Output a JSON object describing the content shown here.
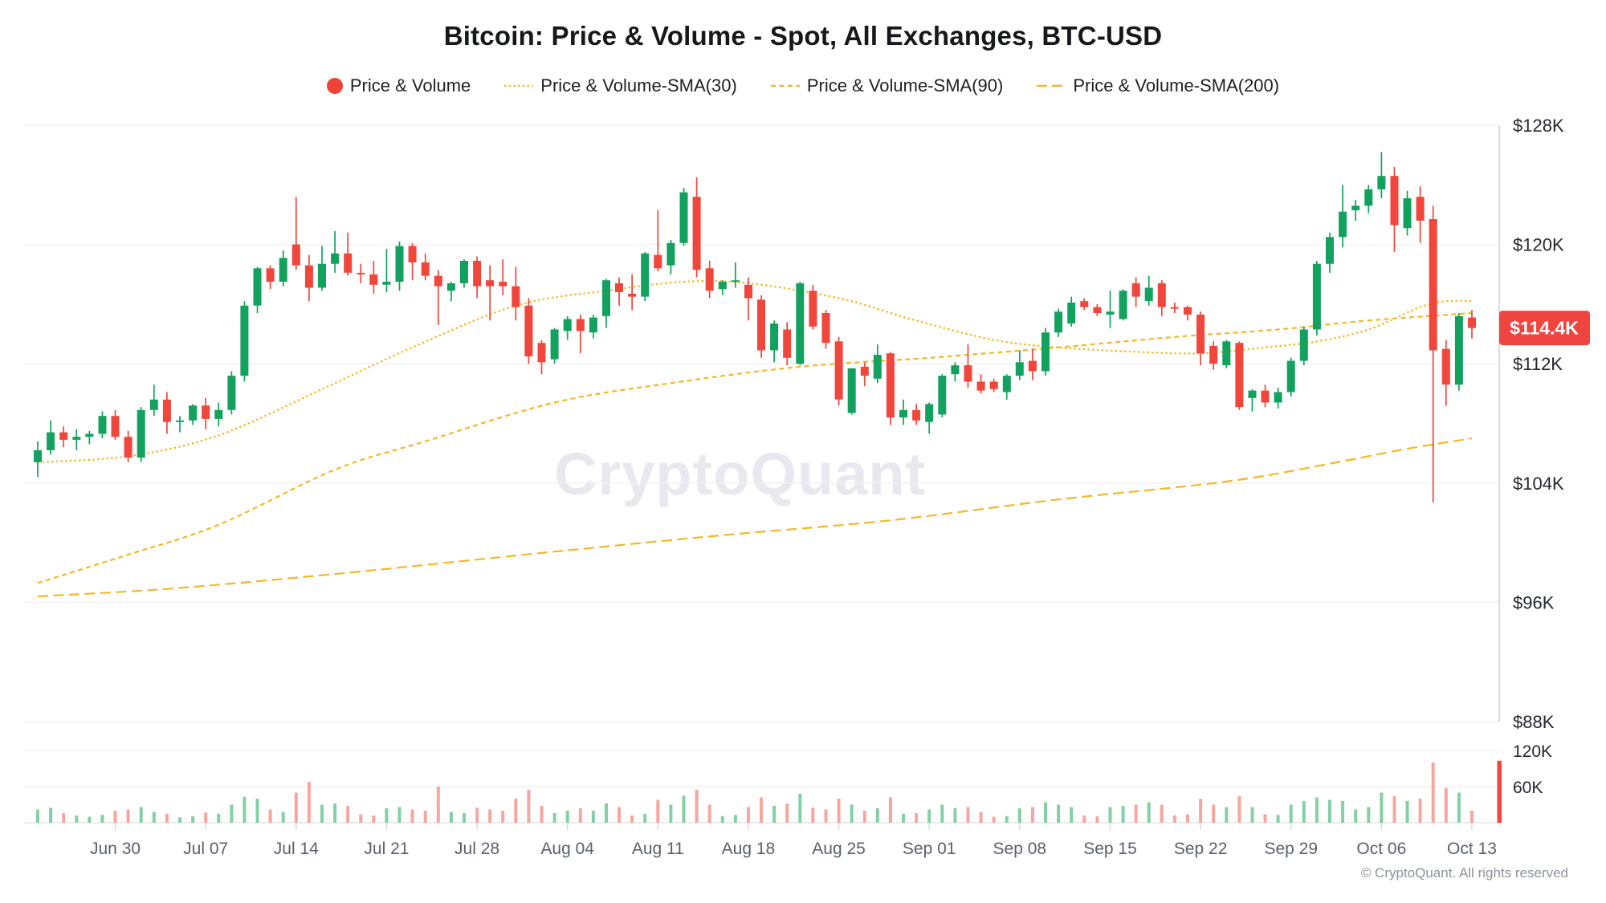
{
  "header": {
    "title": "Bitcoin: Price & Volume - Spot, All Exchanges, BTC-USD",
    "legend": {
      "items": [
        {
          "label": "Price & Volume",
          "marker": "dot",
          "color": "#ee4338"
        },
        {
          "label": "Price & Volume-SMA(30)",
          "marker": "dash-fine",
          "color": "#f4b824"
        },
        {
          "label": "Price & Volume-SMA(90)",
          "marker": "dash-medium",
          "color": "#f4b824"
        },
        {
          "label": "Price & Volume-SMA(200)",
          "marker": "dash-long",
          "color": "#f4b824"
        }
      ]
    }
  },
  "watermark": "CryptoQuant",
  "footer": {
    "copyright": "© CryptoQuant. All rights reserved"
  },
  "chart_data": {
    "type": "candlestick",
    "title": "Bitcoin: Price & Volume - Spot, All Exchanges, BTC-USD",
    "start_date": "Jun 24",
    "end_date": "Oct 13",
    "grid": true,
    "legend_position": "top-center",
    "price_axis": {
      "unit": "$K",
      "range": [
        88,
        128
      ],
      "ticks": [
        {
          "label": "$128K",
          "value": 128
        },
        {
          "label": "$120K",
          "value": 120
        },
        {
          "label": "$112K",
          "value": 112
        },
        {
          "label": "$104K",
          "value": 104
        },
        {
          "label": "$96K",
          "value": 96
        },
        {
          "label": "$88K",
          "value": 88
        }
      ]
    },
    "volume_axis": {
      "unit": "K",
      "ticks": [
        {
          "label": "120K",
          "value": 120
        },
        {
          "label": "60K",
          "value": 60
        }
      ],
      "axis_marker_value": 103
    },
    "x_axis": {
      "ticks": [
        {
          "label": "Jun 30",
          "day": 6
        },
        {
          "label": "Jul 07",
          "day": 13
        },
        {
          "label": "Jul 14",
          "day": 20
        },
        {
          "label": "Jul 21",
          "day": 27
        },
        {
          "label": "Jul 28",
          "day": 34
        },
        {
          "label": "Aug 04",
          "day": 41
        },
        {
          "label": "Aug 11",
          "day": 48
        },
        {
          "label": "Aug 18",
          "day": 55
        },
        {
          "label": "Aug 25",
          "day": 62
        },
        {
          "label": "Sep 01",
          "day": 69
        },
        {
          "label": "Sep 08",
          "day": 76
        },
        {
          "label": "Sep 15",
          "day": 83
        },
        {
          "label": "Sep 22",
          "day": 90
        },
        {
          "label": "Sep 29",
          "day": 97
        },
        {
          "label": "Oct 06",
          "day": 104
        },
        {
          "label": "Oct 13",
          "day": 111
        }
      ]
    },
    "last_price": {
      "label": "$114.4K",
      "value": 114.4
    },
    "colors": {
      "up": "#13a15f",
      "down": "#f0463c",
      "volume_up": "#84cfa6",
      "volume_down": "#f5a79f",
      "sma": "#f4b824",
      "badge": "#ef4540",
      "grid": "#f2f2f4",
      "axis_line": "#d9dbdf"
    },
    "ohlc": [
      [
        105.4,
        106.8,
        104.4,
        106.2
      ],
      [
        106.2,
        108.2,
        105.9,
        107.4
      ],
      [
        107.4,
        107.8,
        106.4,
        106.9
      ],
      [
        106.9,
        107.6,
        106.2,
        107.1
      ],
      [
        107.1,
        107.5,
        106.6,
        107.3
      ],
      [
        107.3,
        108.8,
        107.0,
        108.5
      ],
      [
        108.5,
        108.9,
        106.9,
        107.1
      ],
      [
        107.1,
        107.5,
        105.4,
        105.7
      ],
      [
        105.7,
        109.1,
        105.4,
        108.9
      ],
      [
        108.9,
        110.6,
        108.5,
        109.6
      ],
      [
        109.6,
        110.1,
        107.3,
        108.1
      ],
      [
        108.1,
        108.5,
        107.4,
        108.2
      ],
      [
        108.2,
        109.3,
        107.9,
        109.2
      ],
      [
        109.2,
        109.7,
        107.6,
        108.3
      ],
      [
        108.3,
        109.4,
        107.8,
        108.9
      ],
      [
        108.9,
        111.5,
        108.6,
        111.2
      ],
      [
        111.2,
        116.2,
        110.8,
        115.9
      ],
      [
        115.9,
        118.5,
        115.4,
        118.4
      ],
      [
        118.4,
        118.6,
        117.0,
        117.5
      ],
      [
        117.5,
        119.6,
        117.2,
        119.1
      ],
      [
        120.0,
        123.2,
        118.3,
        118.6
      ],
      [
        118.6,
        119.3,
        116.2,
        117.1
      ],
      [
        117.1,
        119.9,
        116.9,
        118.7
      ],
      [
        118.7,
        120.9,
        118.1,
        119.4
      ],
      [
        119.4,
        120.8,
        117.9,
        118.1
      ],
      [
        118.1,
        118.7,
        117.4,
        118.0
      ],
      [
        118.0,
        118.9,
        116.7,
        117.3
      ],
      [
        117.3,
        119.7,
        116.8,
        117.5
      ],
      [
        117.5,
        120.2,
        116.9,
        119.9
      ],
      [
        119.9,
        120.1,
        117.6,
        118.8
      ],
      [
        118.8,
        119.4,
        117.6,
        117.9
      ],
      [
        117.9,
        118.3,
        114.6,
        117.2
      ],
      [
        116.9,
        117.5,
        116.2,
        117.4
      ],
      [
        117.4,
        119.0,
        117.1,
        118.9
      ],
      [
        118.9,
        119.2,
        116.4,
        117.2
      ],
      [
        117.6,
        118.6,
        114.9,
        117.2
      ],
      [
        117.5,
        119.0,
        116.6,
        117.2
      ],
      [
        117.2,
        118.5,
        114.9,
        115.8
      ],
      [
        115.9,
        116.4,
        112.0,
        112.5
      ],
      [
        113.4,
        113.6,
        111.3,
        112.1
      ],
      [
        112.3,
        114.4,
        112.0,
        114.3
      ],
      [
        114.2,
        115.2,
        113.6,
        115.0
      ],
      [
        115.0,
        115.3,
        112.7,
        114.2
      ],
      [
        114.1,
        115.3,
        113.7,
        115.1
      ],
      [
        115.2,
        117.7,
        114.4,
        117.6
      ],
      [
        117.4,
        117.8,
        115.9,
        116.8
      ],
      [
        116.7,
        118.0,
        115.6,
        116.5
      ],
      [
        116.5,
        119.5,
        116.2,
        119.4
      ],
      [
        119.3,
        122.3,
        118.2,
        118.4
      ],
      [
        118.6,
        120.3,
        118.0,
        120.1
      ],
      [
        120.1,
        123.8,
        119.9,
        123.5
      ],
      [
        123.2,
        124.5,
        117.8,
        118.3
      ],
      [
        118.4,
        118.9,
        116.4,
        116.9
      ],
      [
        117.0,
        117.6,
        116.6,
        117.5
      ],
      [
        117.5,
        118.8,
        117.1,
        117.6
      ],
      [
        117.3,
        117.8,
        114.9,
        116.4
      ],
      [
        116.3,
        116.6,
        112.4,
        112.9
      ],
      [
        112.9,
        114.9,
        112.1,
        114.7
      ],
      [
        114.3,
        114.8,
        111.9,
        112.4
      ],
      [
        112.0,
        117.5,
        111.9,
        117.4
      ],
      [
        116.9,
        117.3,
        114.3,
        114.5
      ],
      [
        115.4,
        115.6,
        113.0,
        113.4
      ],
      [
        113.5,
        113.8,
        109.2,
        109.6
      ],
      [
        108.7,
        111.7,
        108.6,
        111.7
      ],
      [
        111.8,
        112.1,
        110.5,
        111.2
      ],
      [
        111.0,
        113.3,
        110.7,
        112.6
      ],
      [
        112.7,
        112.8,
        107.9,
        108.4
      ],
      [
        108.4,
        109.6,
        107.9,
        108.9
      ],
      [
        108.9,
        109.3,
        107.9,
        108.2
      ],
      [
        108.1,
        109.4,
        107.3,
        109.3
      ],
      [
        108.6,
        111.3,
        108.4,
        111.2
      ],
      [
        111.3,
        112.1,
        110.8,
        111.9
      ],
      [
        111.9,
        113.3,
        110.4,
        110.8
      ],
      [
        110.8,
        111.3,
        110.0,
        110.2
      ],
      [
        110.8,
        111.0,
        110.1,
        110.3
      ],
      [
        110.1,
        111.3,
        109.6,
        111.2
      ],
      [
        111.2,
        112.9,
        110.9,
        112.1
      ],
      [
        112.2,
        113.0,
        110.9,
        111.5
      ],
      [
        111.5,
        114.4,
        111.2,
        114.1
      ],
      [
        114.1,
        115.7,
        113.8,
        115.5
      ],
      [
        114.7,
        116.5,
        114.5,
        116.1
      ],
      [
        116.2,
        116.4,
        115.6,
        115.8
      ],
      [
        115.8,
        116.0,
        115.2,
        115.4
      ],
      [
        115.3,
        116.9,
        114.4,
        115.5
      ],
      [
        115.0,
        117.0,
        114.9,
        116.9
      ],
      [
        117.4,
        117.8,
        115.8,
        116.5
      ],
      [
        116.2,
        117.9,
        115.9,
        117.1
      ],
      [
        117.4,
        117.6,
        115.2,
        115.8
      ],
      [
        115.8,
        116.1,
        115.4,
        115.7
      ],
      [
        115.8,
        115.9,
        114.9,
        115.3
      ],
      [
        115.3,
        115.5,
        111.9,
        112.7
      ],
      [
        113.2,
        113.5,
        111.6,
        112.0
      ],
      [
        111.9,
        113.6,
        111.7,
        113.5
      ],
      [
        113.4,
        113.5,
        108.9,
        109.1
      ],
      [
        109.7,
        110.3,
        108.8,
        110.2
      ],
      [
        110.2,
        110.6,
        109.1,
        109.4
      ],
      [
        109.4,
        110.4,
        109.0,
        110.1
      ],
      [
        110.1,
        112.4,
        109.8,
        112.2
      ],
      [
        112.2,
        114.5,
        111.9,
        114.3
      ],
      [
        114.3,
        118.9,
        113.9,
        118.7
      ],
      [
        118.7,
        120.8,
        118.1,
        120.5
      ],
      [
        120.5,
        124.0,
        119.8,
        122.2
      ],
      [
        122.3,
        123.0,
        121.6,
        122.6
      ],
      [
        122.6,
        124.0,
        122.1,
        123.7
      ],
      [
        123.7,
        126.2,
        123.1,
        124.6
      ],
      [
        124.6,
        125.2,
        119.5,
        121.3
      ],
      [
        121.1,
        123.6,
        120.6,
        123.1
      ],
      [
        123.2,
        123.9,
        120.1,
        121.6
      ],
      [
        121.7,
        122.6,
        102.7,
        112.9
      ],
      [
        113.0,
        113.6,
        109.2,
        110.6
      ],
      [
        110.6,
        115.4,
        110.2,
        115.2
      ],
      [
        115.1,
        115.6,
        113.7,
        114.4
      ]
    ],
    "volumes": [
      22,
      25,
      16,
      12,
      10,
      13,
      20,
      22,
      26,
      18,
      15,
      9,
      11,
      17,
      15,
      30,
      43,
      40,
      22,
      18,
      50,
      68,
      30,
      32,
      28,
      14,
      12,
      24,
      26,
      22,
      20,
      60,
      18,
      16,
      25,
      22,
      20,
      40,
      55,
      28,
      16,
      20,
      24,
      20,
      32,
      26,
      12,
      15,
      38,
      30,
      45,
      55,
      30,
      11,
      13,
      26,
      42,
      28,
      32,
      48,
      25,
      22,
      40,
      30,
      20,
      24,
      42,
      15,
      16,
      22,
      30,
      24,
      26,
      18,
      10,
      11,
      24,
      26,
      34,
      30,
      26,
      12,
      11,
      26,
      28,
      30,
      34,
      30,
      12,
      14,
      40,
      30,
      26,
      44,
      26,
      14,
      13,
      30,
      36,
      42,
      38,
      36,
      22,
      26,
      50,
      44,
      36,
      40,
      100,
      58,
      50,
      20
    ],
    "sma30": [
      [
        0,
        105.4
      ],
      [
        7,
        105.8
      ],
      [
        14,
        107.2
      ],
      [
        22,
        110.3
      ],
      [
        29,
        113.1
      ],
      [
        37,
        115.9
      ],
      [
        44,
        116.9
      ],
      [
        50,
        117.5
      ],
      [
        55,
        117.4
      ],
      [
        62,
        116.4
      ],
      [
        68,
        114.9
      ],
      [
        74,
        113.6
      ],
      [
        79,
        113.1
      ],
      [
        85,
        112.8
      ],
      [
        90,
        112.7
      ],
      [
        95,
        113.1
      ],
      [
        99,
        113.5
      ],
      [
        103,
        114.3
      ],
      [
        107,
        115.8
      ],
      [
        109,
        116.2
      ],
      [
        111,
        116.2
      ]
    ],
    "sma90": [
      [
        0,
        97.3
      ],
      [
        7,
        99.2
      ],
      [
        14,
        101.2
      ],
      [
        23,
        104.9
      ],
      [
        30,
        106.8
      ],
      [
        40,
        109.4
      ],
      [
        49,
        110.7
      ],
      [
        59,
        111.8
      ],
      [
        69,
        112.4
      ],
      [
        79,
        113.1
      ],
      [
        88,
        113.8
      ],
      [
        96,
        114.3
      ],
      [
        103,
        114.9
      ],
      [
        111,
        115.4
      ]
    ],
    "sma200": [
      [
        0,
        96.4
      ],
      [
        10,
        96.9
      ],
      [
        23,
        97.9
      ],
      [
        40,
        99.4
      ],
      [
        53,
        100.5
      ],
      [
        66,
        101.5
      ],
      [
        79,
        102.9
      ],
      [
        92,
        104.1
      ],
      [
        100,
        105.3
      ],
      [
        106,
        106.3
      ],
      [
        111,
        107.0
      ]
    ]
  }
}
